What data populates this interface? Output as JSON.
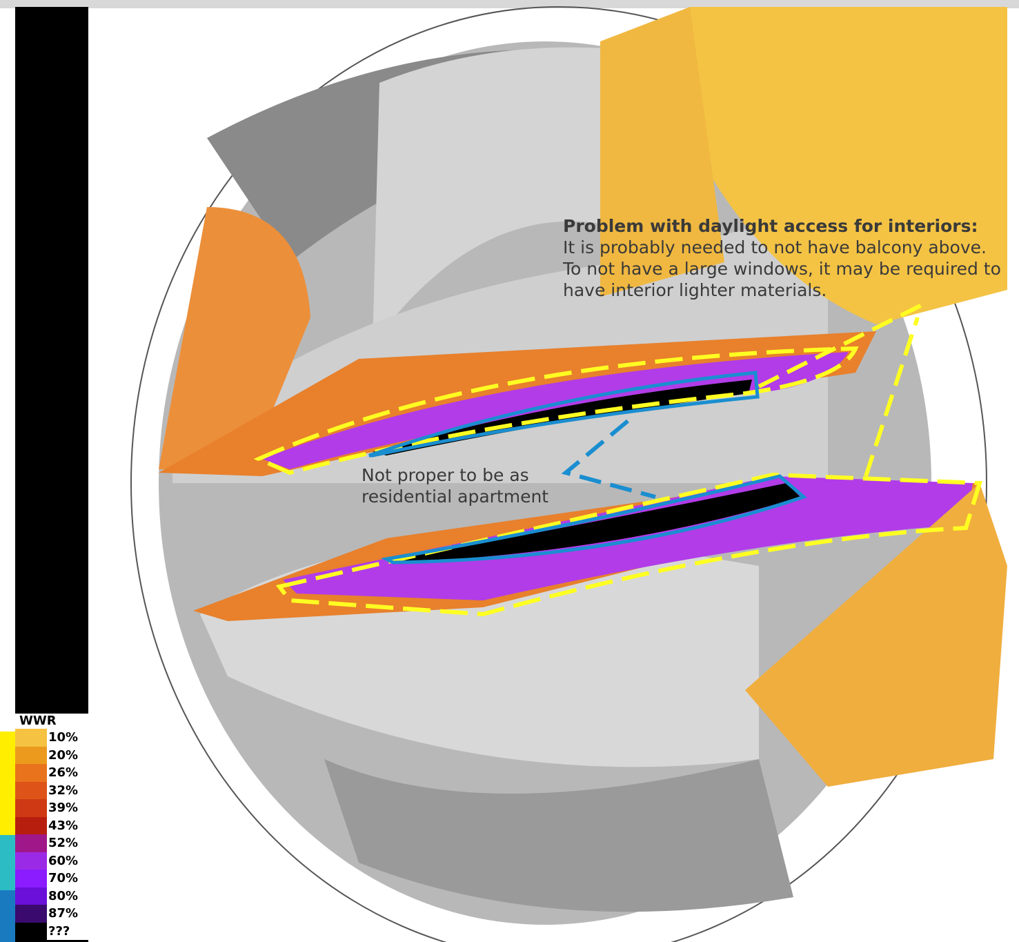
{
  "annotations": [
    {
      "heading": "Problem with daylight access for interiors:",
      "lines": [
        "It is probably needed to not have balcony above.",
        "To not have a large windows, it may be required to",
        "have interior lighter materials."
      ]
    },
    {
      "lines": [
        "Not proper to be as",
        "residential apartment"
      ]
    }
  ],
  "legend": {
    "title": "WWR",
    "items": [
      {
        "label": "10%",
        "color": "#f5c242"
      },
      {
        "label": "20%",
        "color": "#ec9a1e"
      },
      {
        "label": "26%",
        "color": "#e8731c"
      },
      {
        "label": "32%",
        "color": "#de5418"
      },
      {
        "label": "39%",
        "color": "#cf3a14"
      },
      {
        "label": "43%",
        "color": "#b81e0e"
      },
      {
        "label": "52%",
        "color": "#a0178a"
      },
      {
        "label": "60%",
        "color": "#9b2ae6"
      },
      {
        "label": "70%",
        "color": "#8a1cff"
      },
      {
        "label": "80%",
        "color": "#6a10d8"
      },
      {
        "label": "87%",
        "color": "#3a0a6e"
      },
      {
        "label": "???",
        "color": "#000000"
      }
    ]
  }
}
